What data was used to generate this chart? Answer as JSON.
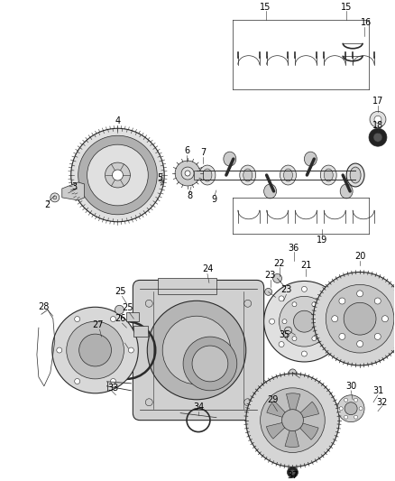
{
  "bg_color": "#ffffff",
  "fig_width": 4.38,
  "fig_height": 5.33,
  "dpi": 100,
  "dark": "#2a2a2a",
  "mid": "#888888",
  "light": "#cccccc",
  "lighter": "#e0e0e0"
}
